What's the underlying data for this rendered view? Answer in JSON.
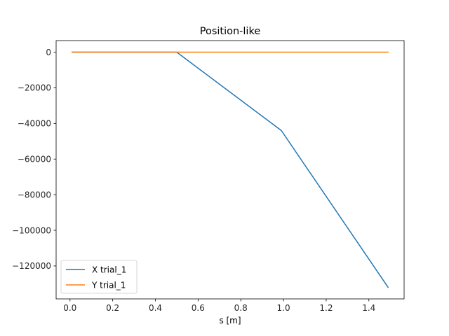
{
  "chart_data": {
    "type": "line",
    "title": "Position-like",
    "xlabel": "s [m]",
    "ylabel": "",
    "xlim": [
      -0.065,
      1.565
    ],
    "ylim": [
      -138500,
      6500
    ],
    "xticks": [
      0.0,
      0.2,
      0.4,
      0.6,
      0.8,
      1.0,
      1.2,
      1.4
    ],
    "xtick_labels": [
      "0.0",
      "0.2",
      "0.4",
      "0.6",
      "0.8",
      "1.0",
      "1.2",
      "1.4"
    ],
    "yticks": [
      0,
      -20000,
      -40000,
      -60000,
      -80000,
      -100000,
      -120000
    ],
    "ytick_labels": [
      "0",
      "−20000",
      "−40000",
      "−60000",
      "−80000",
      "−100000",
      "−120000"
    ],
    "grid": false,
    "legend_position": "lower-left",
    "series": [
      {
        "name": "X trial_1",
        "color": "#1f77b4",
        "x": [
          0.01,
          0.5,
          0.99,
          1.49
        ],
        "y": [
          0,
          0,
          -44000,
          -132000
        ]
      },
      {
        "name": "Y trial_1",
        "color": "#ff7f0e",
        "x": [
          0.01,
          0.5,
          0.99,
          1.49
        ],
        "y": [
          0,
          0,
          0,
          0
        ]
      }
    ]
  }
}
